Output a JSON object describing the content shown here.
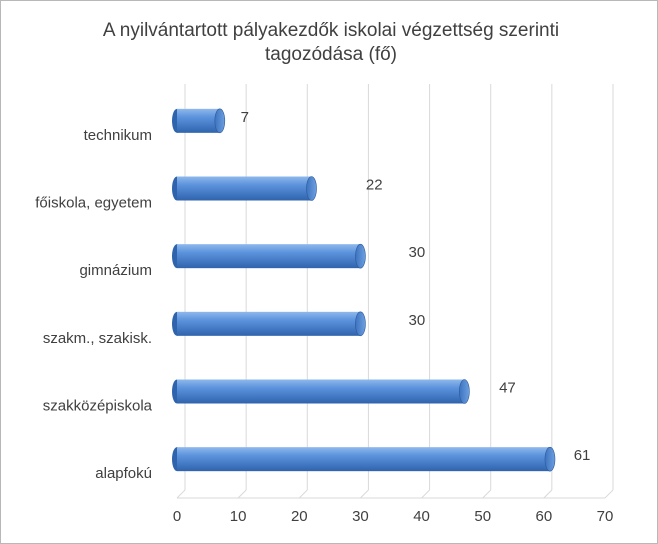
{
  "chart_data": {
    "type": "bar",
    "orientation": "horizontal",
    "title": "A nyilvántartott pályakezdők iskolai végzettség szerinti tagozódása (fő)",
    "categories": [
      "technikum",
      "főiskola, egyetem",
      "gimnázium",
      "szakm., szakisk.",
      "szakközépiskola",
      "alapfokú"
    ],
    "values": [
      7,
      22,
      30,
      30,
      47,
      61
    ],
    "xlim": [
      0,
      70
    ],
    "x_ticks": [
      0,
      10,
      20,
      30,
      40,
      50,
      60,
      70
    ],
    "grid": true,
    "bar_color": "#4a86d4"
  }
}
